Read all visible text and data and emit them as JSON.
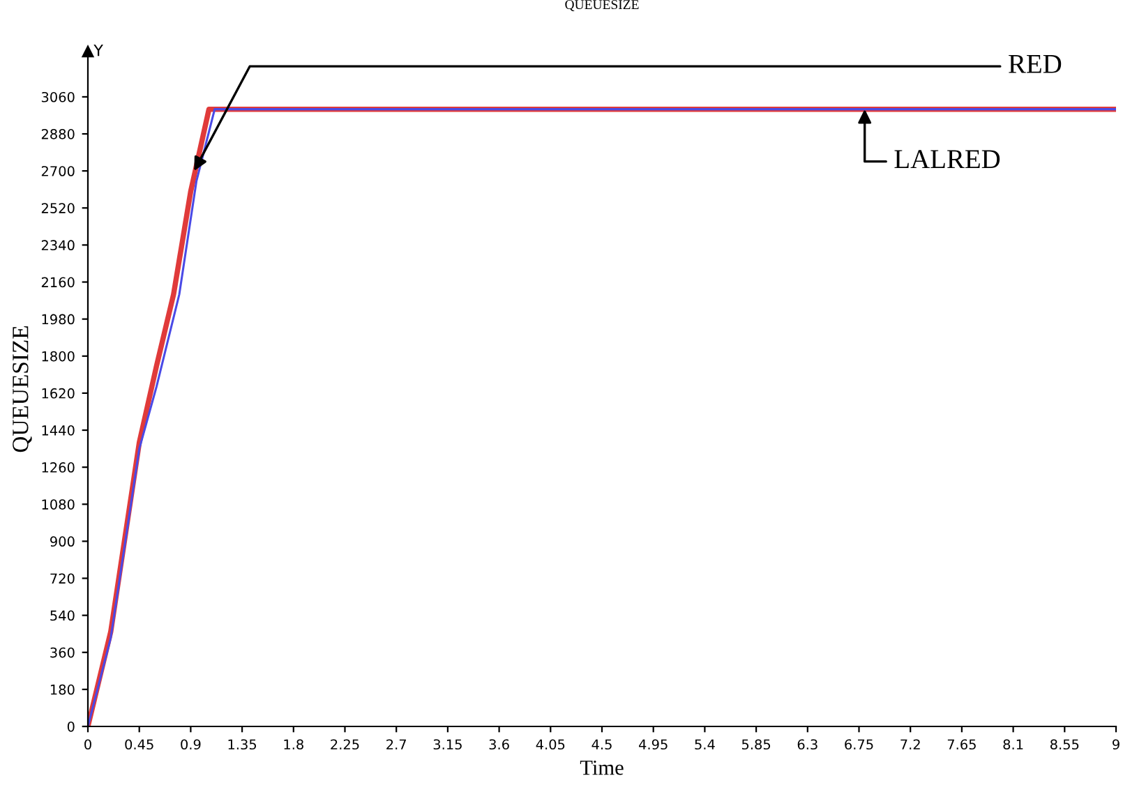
{
  "chart_data": {
    "type": "line",
    "title": "QUEUESIZE",
    "xlabel": "Time",
    "ylabel": "QUEUESIZE",
    "xlim": [
      0,
      9
    ],
    "ylim": [
      0,
      3280
    ],
    "xticks": [
      0,
      0.45,
      0.9,
      1.35,
      1.8,
      2.25,
      2.7,
      3.15,
      3.6,
      4.05,
      4.5,
      4.95,
      5.4,
      5.85,
      6.3,
      6.75,
      7.2,
      7.65,
      8.1,
      8.55,
      9
    ],
    "yticks": [
      0,
      180,
      360,
      540,
      720,
      900,
      1080,
      1260,
      1440,
      1620,
      1800,
      1980,
      2160,
      2340,
      2520,
      2700,
      2880,
      3060
    ],
    "series": [
      {
        "color": "#e03a3a",
        "x": [
          0,
          0.2,
          0.45,
          0.6,
          0.75,
          0.9,
          1.06,
          9
        ],
        "values": [
          0,
          460,
          1380,
          1750,
          2100,
          2600,
          3000,
          3000
        ]
      },
      {
        "color": "#4a4ae6",
        "x": [
          0,
          0.2,
          0.45,
          0.6,
          0.8,
          0.95,
          1.11,
          9
        ],
        "values": [
          0,
          430,
          1350,
          1650,
          2100,
          2650,
          3000,
          3000
        ]
      }
    ],
    "annotations": [
      "Y",
      {
        "text": "RED",
        "x": 0.93,
        "y": 2700
      },
      {
        "text": "LALRED",
        "x": 6.8,
        "y": 3000
      }
    ],
    "grid": false,
    "legend": false,
    "marker": "none",
    "line_style": "solid"
  }
}
